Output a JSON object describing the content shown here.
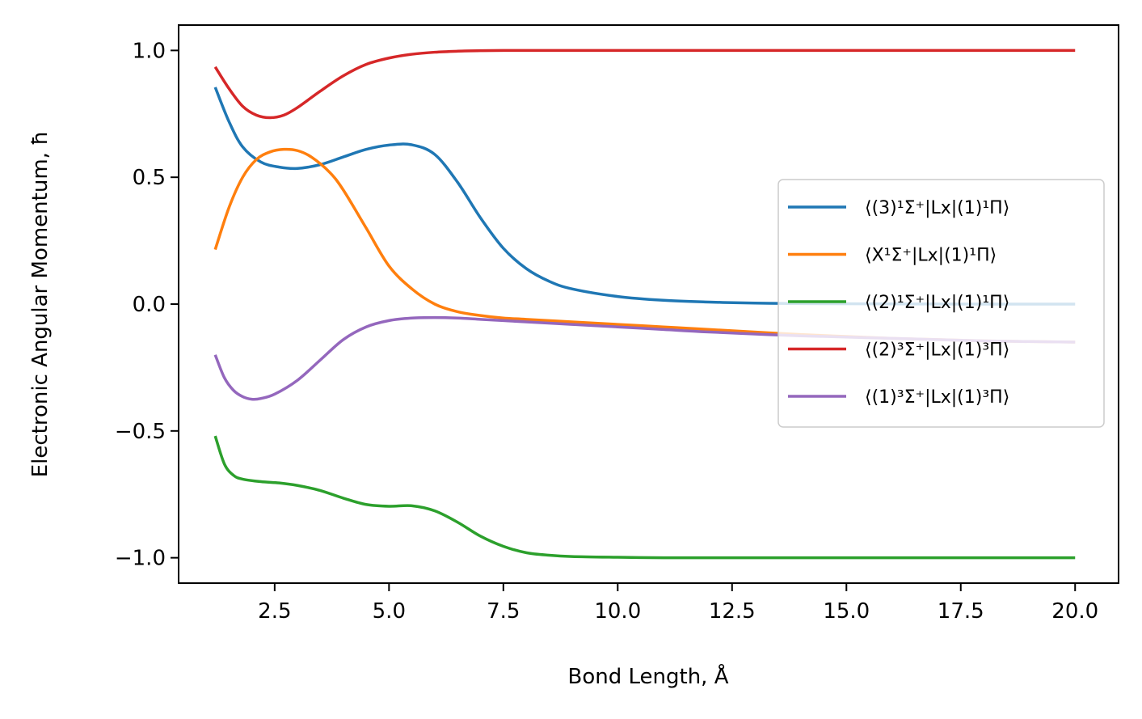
{
  "chart_data": {
    "type": "line",
    "xlabel": "Bond Length, Å",
    "ylabel": "Electronic Angular Momentum, ħ",
    "xlim": [
      0.4,
      20.95
    ],
    "ylim": [
      -1.1,
      1.1
    ],
    "xticks": [
      2.5,
      5.0,
      7.5,
      10.0,
      12.5,
      15.0,
      17.5,
      20.0
    ],
    "xtick_labels": [
      "2.5",
      "5.0",
      "7.5",
      "10.0",
      "12.5",
      "15.0",
      "17.5",
      "20.0"
    ],
    "yticks": [
      1.0,
      0.5,
      0.0,
      -0.5,
      -1.0
    ],
    "ytick_labels": [
      "1.0",
      "0.5",
      "0.0",
      "−0.5",
      "−1.0"
    ],
    "grid": false,
    "legend_position": "center-right",
    "series": [
      {
        "name": "⟨(3)¹Σ⁺|Lx|(1)¹Π⟩",
        "color": "#1f77b4",
        "x": [
          1.2,
          1.5,
          1.8,
          2.2,
          2.6,
          3.0,
          3.5,
          4.0,
          4.5,
          5.0,
          5.5,
          6.0,
          6.5,
          7.0,
          7.5,
          8.0,
          8.5,
          9.0,
          10.0,
          11.0,
          12.0,
          13.0,
          14.0,
          16.0,
          18.0,
          20.0
        ],
        "y": [
          0.855,
          0.72,
          0.62,
          0.56,
          0.54,
          0.535,
          0.55,
          0.58,
          0.61,
          0.627,
          0.628,
          0.59,
          0.48,
          0.34,
          0.22,
          0.14,
          0.09,
          0.06,
          0.03,
          0.015,
          0.008,
          0.004,
          0.002,
          0.001,
          0.0,
          0.0
        ]
      },
      {
        "name": "⟨X¹Σ⁺|Lx|(1)¹Π⟩",
        "color": "#ff7f0e",
        "x": [
          1.2,
          1.5,
          1.8,
          2.1,
          2.4,
          2.7,
          3.0,
          3.3,
          3.7,
          4.0,
          4.5,
          5.0,
          5.5,
          6.0,
          6.5,
          7.0,
          7.5,
          8.0,
          9.0,
          10.0,
          11.0,
          12.0,
          14.0,
          16.0,
          18.0,
          20.0
        ],
        "y": [
          0.215,
          0.38,
          0.5,
          0.57,
          0.6,
          0.61,
          0.605,
          0.58,
          0.52,
          0.45,
          0.3,
          0.15,
          0.06,
          0.0,
          -0.03,
          -0.045,
          -0.055,
          -0.06,
          -0.07,
          -0.08,
          -0.09,
          -0.1,
          -0.12,
          -0.135,
          -0.145,
          -0.15
        ]
      },
      {
        "name": "⟨(2)¹Σ⁺|Lx|(1)¹Π⟩",
        "color": "#2ca02c",
        "x": [
          1.2,
          1.4,
          1.6,
          1.8,
          2.2,
          2.6,
          3.0,
          3.5,
          4.0,
          4.5,
          5.0,
          5.5,
          6.0,
          6.5,
          7.0,
          7.5,
          8.0,
          8.5,
          9.0,
          10.0,
          11.0,
          12.0,
          14.0,
          16.0,
          18.0,
          20.0
        ],
        "y": [
          -0.52,
          -0.63,
          -0.675,
          -0.69,
          -0.7,
          -0.705,
          -0.715,
          -0.735,
          -0.765,
          -0.79,
          -0.797,
          -0.795,
          -0.815,
          -0.86,
          -0.915,
          -0.955,
          -0.98,
          -0.99,
          -0.995,
          -0.998,
          -1.0,
          -1.0,
          -1.0,
          -1.0,
          -1.0,
          -1.0
        ]
      },
      {
        "name": "⟨(2)³Σ⁺|Lx|(1)³Π⟩",
        "color": "#d62728",
        "x": [
          1.2,
          1.5,
          1.8,
          2.1,
          2.4,
          2.7,
          3.0,
          3.5,
          4.0,
          4.5,
          5.0,
          5.5,
          6.0,
          6.5,
          7.0,
          7.5,
          8.0,
          9.0,
          10.0,
          12.0,
          14.0,
          16.0,
          18.0,
          20.0
        ],
        "y": [
          0.935,
          0.85,
          0.78,
          0.745,
          0.735,
          0.745,
          0.775,
          0.84,
          0.9,
          0.945,
          0.97,
          0.985,
          0.993,
          0.997,
          0.999,
          1.0,
          1.0,
          1.0,
          1.0,
          1.0,
          1.0,
          1.0,
          1.0,
          1.0
        ]
      },
      {
        "name": "⟨(1)³Σ⁺|Lx|(1)³Π⟩",
        "color": "#9467bd",
        "x": [
          1.2,
          1.4,
          1.6,
          1.8,
          2.0,
          2.2,
          2.5,
          3.0,
          3.5,
          4.0,
          4.5,
          5.0,
          5.5,
          6.0,
          6.5,
          7.0,
          7.5,
          8.0,
          9.0,
          10.0,
          11.0,
          12.0,
          14.0,
          16.0,
          18.0,
          20.0
        ],
        "y": [
          -0.2,
          -0.29,
          -0.34,
          -0.365,
          -0.375,
          -0.372,
          -0.355,
          -0.3,
          -0.22,
          -0.14,
          -0.09,
          -0.065,
          -0.055,
          -0.053,
          -0.055,
          -0.06,
          -0.065,
          -0.07,
          -0.08,
          -0.09,
          -0.1,
          -0.11,
          -0.125,
          -0.135,
          -0.145,
          -0.15
        ]
      }
    ]
  }
}
